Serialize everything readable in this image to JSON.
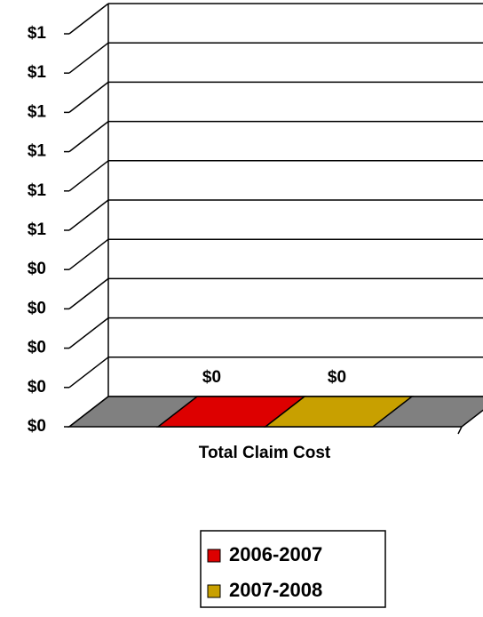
{
  "chart_data": {
    "type": "bar3d",
    "xlabel": "Total Claim Cost",
    "series": [
      {
        "name": "2006-2007",
        "color": "#dd0000",
        "values": [
          0
        ],
        "value_labels": [
          "$0"
        ]
      },
      {
        "name": "2007-2008",
        "color": "#c8a000",
        "values": [
          0
        ],
        "value_labels": [
          "$0"
        ]
      }
    ],
    "ylim": [
      0,
      1
    ],
    "yticks": [
      {
        "value": 0,
        "label": "$0"
      },
      {
        "value": 0.1,
        "label": "$0"
      },
      {
        "value": 0.2,
        "label": "$0"
      },
      {
        "value": 0.3,
        "label": "$0"
      },
      {
        "value": 0.4,
        "label": "$0"
      },
      {
        "value": 0.5,
        "label": "$1"
      },
      {
        "value": 0.6,
        "label": "$1"
      },
      {
        "value": 0.7,
        "label": "$1"
      },
      {
        "value": 0.8,
        "label": "$1"
      },
      {
        "value": 0.9,
        "label": "$1"
      },
      {
        "value": 1,
        "label": "$1"
      }
    ],
    "grid": true
  }
}
